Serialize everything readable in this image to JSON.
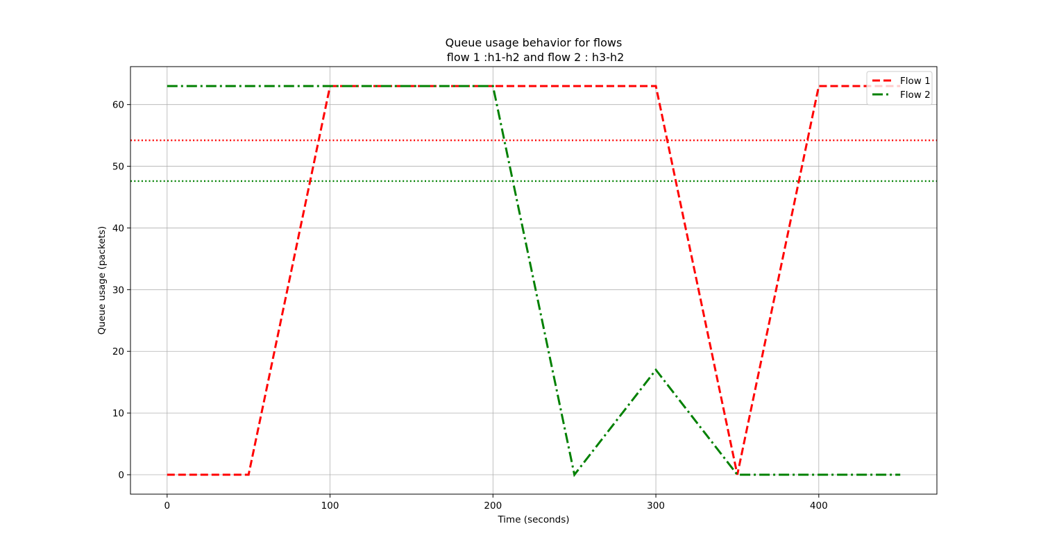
{
  "chart_data": {
    "type": "line",
    "title_line1": "Queue usage behavior for flows",
    "title_line2": " flow 1 :h1-h2 and flow 2 : h3-h2",
    "xlabel": "Time (seconds)",
    "ylabel": "Queue usage (packets)",
    "xlim": [
      -22.5,
      472.5
    ],
    "ylim": [
      -3.15,
      66.15
    ],
    "xticks": [
      0,
      100,
      200,
      300,
      400
    ],
    "yticks": [
      0,
      10,
      20,
      30,
      40,
      50,
      60
    ],
    "grid": true,
    "legend_position": "top-right",
    "series": [
      {
        "name": "Flow 1",
        "color": "#ff0000",
        "style": "dashed",
        "points": [
          [
            0,
            0
          ],
          [
            50,
            0
          ],
          [
            100,
            63
          ],
          [
            150,
            63
          ],
          [
            200,
            63
          ],
          [
            250,
            63
          ],
          [
            300,
            63
          ],
          [
            350,
            0
          ],
          [
            400,
            63
          ],
          [
            450,
            63
          ]
        ]
      },
      {
        "name": "Flow 2",
        "color": "#008000",
        "style": "dashdot",
        "points": [
          [
            0,
            63
          ],
          [
            50,
            63
          ],
          [
            100,
            63
          ],
          [
            150,
            63
          ],
          [
            200,
            63
          ],
          [
            250,
            0
          ],
          [
            300,
            17
          ],
          [
            350,
            0
          ],
          [
            400,
            0
          ],
          [
            450,
            0
          ]
        ]
      }
    ],
    "hlines": [
      {
        "y": 54.2,
        "color": "#ff0000",
        "style": "dotted"
      },
      {
        "y": 47.6,
        "color": "#008000",
        "style": "dotted"
      }
    ]
  }
}
